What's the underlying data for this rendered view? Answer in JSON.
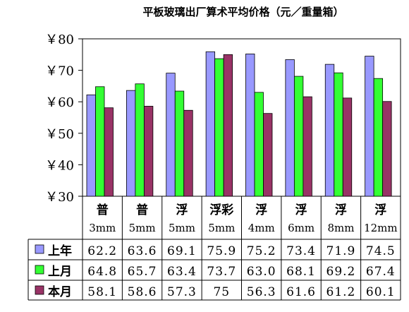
{
  "chart_data": {
    "type": "bar",
    "title": "平板玻璃出厂算术平均价格（元／重量箱）",
    "ylim": [
      30,
      80
    ],
    "yticks": [
      "￥30",
      "￥40",
      "￥50",
      "￥60",
      "￥70",
      "￥80"
    ],
    "ytick_values": [
      30,
      40,
      50,
      60,
      70,
      80
    ],
    "grid": false,
    "legend_placement": "data-table",
    "categories": [
      {
        "line1": "普",
        "line2": "3mm"
      },
      {
        "line1": "普",
        "line2": "5mm"
      },
      {
        "line1": "浮",
        "line2": "5mm"
      },
      {
        "line1": "浮彩",
        "line2": "5mm"
      },
      {
        "line1": "浮",
        "line2": "4mm"
      },
      {
        "line1": "浮",
        "line2": "6mm"
      },
      {
        "line1": "浮",
        "line2": "8mm"
      },
      {
        "line1": "浮",
        "line2": "12mm"
      }
    ],
    "series": [
      {
        "name": "上年",
        "color": "#9999FF",
        "values": [
          62.2,
          63.6,
          69.1,
          75.9,
          75.2,
          73.4,
          71.9,
          74.5
        ],
        "labels": [
          "62.2",
          "63.6",
          "69.1",
          "75.9",
          "75.2",
          "73.4",
          "71.9",
          "74.5"
        ]
      },
      {
        "name": "上月",
        "color": "#33FF33",
        "values": [
          64.8,
          65.7,
          63.4,
          73.7,
          63.0,
          68.1,
          69.2,
          67.4
        ],
        "labels": [
          "64.8",
          "65.7",
          "63.4",
          "73.7",
          "63.0",
          "68.1",
          "69.2",
          "67.4"
        ]
      },
      {
        "name": "本月",
        "color": "#993366",
        "values": [
          58.1,
          58.6,
          57.3,
          75,
          56.3,
          61.6,
          61.2,
          60.1
        ],
        "labels": [
          "58.1",
          "58.6",
          "57.3",
          "75",
          "56.3",
          "61.6",
          "61.2",
          "60.1"
        ]
      }
    ]
  }
}
